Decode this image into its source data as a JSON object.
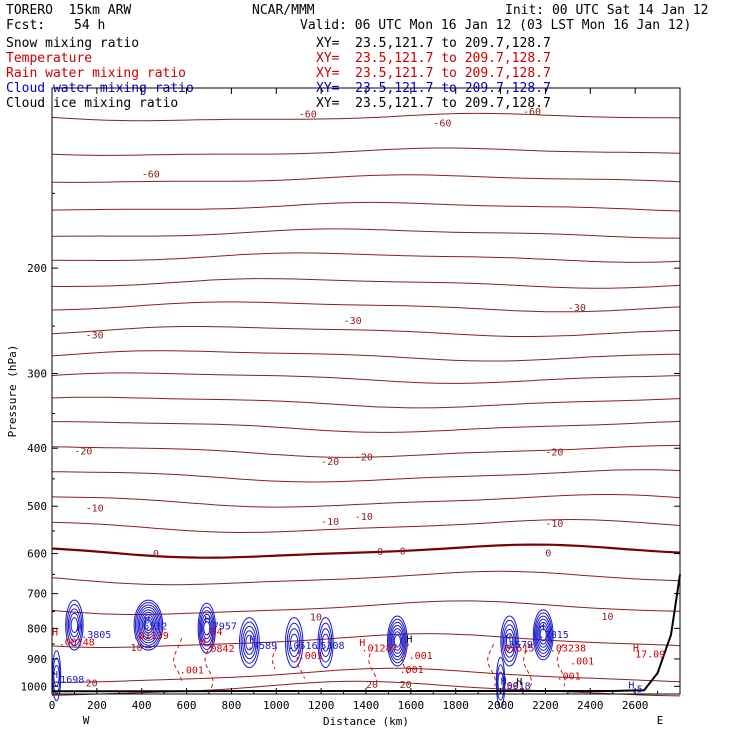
{
  "header": {
    "model": "TORERO  15km ARW",
    "org": "NCAR/MMM",
    "init": "Init: 00 UTC Sat 14 Jan 12",
    "fcst_label": "Fcst:",
    "fcst_value": "54 h",
    "valid": "Valid: 06 UTC Mon 16 Jan 12 (03 LST Mon 16 Jan 12)"
  },
  "fields": [
    {
      "name": "Snow mixing ratio",
      "xy": "XY=  23.5,121.7 to 209.7,128.7",
      "color": "#000000",
      "xy_color": "#000000"
    },
    {
      "name": "Temperature",
      "xy": "XY=  23.5,121.7 to 209.7,128.7",
      "color": "#cc0000",
      "xy_color": "#cc0000"
    },
    {
      "name": "Rain water mixing ratio",
      "xy": "XY=  23.5,121.7 to 209.7,128.7",
      "color": "#cc0000",
      "xy_color": "#cc0000"
    },
    {
      "name": "Cloud water mixing ratio",
      "xy": "XY=  23.5,121.7 to 209.7,128.7",
      "color": "#0000cc",
      "xy_color": "#0000cc"
    },
    {
      "name": "Cloud ice mixing ratio",
      "xy": "XY=  23.5,121.7 to 209.7,128.7",
      "color": "#000000",
      "xy_color": "#000000"
    }
  ],
  "chart_data": {
    "type": "cross-section contour",
    "xlabel": "Distance (km)",
    "ylabel": "Pressure (hPa)",
    "x_ticks": [
      0,
      200,
      400,
      600,
      800,
      1000,
      1200,
      1400,
      1600,
      1800,
      2000,
      2200,
      2400,
      2600
    ],
    "y_ticks": [
      200,
      300,
      400,
      500,
      600,
      700,
      800,
      900,
      1000
    ],
    "xlim": [
      0,
      2800
    ],
    "ylim": [
      1030,
      100
    ],
    "y_scale": "log",
    "west_label": "W",
    "east_label": "E",
    "temperature_labels": [
      {
        "x": 1100,
        "p": 112,
        "text": "-60"
      },
      {
        "x": 1700,
        "p": 116,
        "text": "-60"
      },
      {
        "x": 2100,
        "p": 111,
        "text": "-60"
      },
      {
        "x": 400,
        "p": 141,
        "text": "-60"
      },
      {
        "x": 1300,
        "p": 248,
        "text": "-30"
      },
      {
        "x": 2300,
        "p": 236,
        "text": "-30"
      },
      {
        "x": 150,
        "p": 262,
        "text": "-30"
      },
      {
        "x": 1200,
        "p": 427,
        "text": "-20"
      },
      {
        "x": 1350,
        "p": 419,
        "text": "-20"
      },
      {
        "x": 2200,
        "p": 411,
        "text": "-20"
      },
      {
        "x": 100,
        "p": 410,
        "text": "-20"
      },
      {
        "x": 1200,
        "p": 537,
        "text": "-10"
      },
      {
        "x": 1350,
        "p": 527,
        "text": "-10"
      },
      {
        "x": 2200,
        "p": 542,
        "text": "-10"
      },
      {
        "x": 150,
        "p": 510,
        "text": "-10"
      },
      {
        "x": 450,
        "p": 608,
        "text": "0"
      },
      {
        "x": 1450,
        "p": 603,
        "text": "0"
      },
      {
        "x": 1550,
        "p": 602,
        "text": "0"
      },
      {
        "x": 2200,
        "p": 607,
        "text": "0"
      },
      {
        "x": 1150,
        "p": 776,
        "text": "10"
      },
      {
        "x": 2450,
        "p": 775,
        "text": "10"
      },
      {
        "x": 350,
        "p": 873,
        "text": "10"
      },
      {
        "x": 150,
        "p": 1000,
        "text": "20"
      },
      {
        "x": 1400,
        "p": 1007,
        "text": "20"
      },
      {
        "x": 1550,
        "p": 1007,
        "text": "20"
      }
    ],
    "rain_labels": [
      {
        "x": 570,
        "p": 952,
        "text": ".001"
      },
      {
        "x": 1100,
        "p": 900,
        "text": ".001"
      },
      {
        "x": 1590,
        "p": 900,
        "text": ".001"
      },
      {
        "x": 1550,
        "p": 950,
        "text": ".001"
      },
      {
        "x": 2250,
        "p": 975,
        "text": ".001"
      },
      {
        "x": 2310,
        "p": 920,
        "text": ".001"
      },
      {
        "x": 2000,
        "p": 1010,
        "text": ".001"
      },
      {
        "x": 0,
        "p": 822,
        "text": "H"
      },
      {
        "x": 30,
        "p": 855,
        "text": ".00148"
      },
      {
        "x": 360,
        "p": 833,
        "text": ".01139"
      },
      {
        "x": 680,
        "p": 820,
        "text": ".04"
      },
      {
        "x": 660,
        "p": 853,
        "text": "H"
      },
      {
        "x": 680,
        "p": 876,
        "text": ".0842"
      },
      {
        "x": 1370,
        "p": 857,
        "text": "H"
      },
      {
        "x": 1380,
        "p": 874,
        "text": ".01287"
      },
      {
        "x": 1990,
        "p": 874,
        "text": ".01515"
      },
      {
        "x": 2220,
        "p": 874,
        "text": ".03238"
      },
      {
        "x": 2590,
        "p": 875,
        "text": "H"
      },
      {
        "x": 2600,
        "p": 895,
        "text": "17.09"
      }
    ],
    "cloud_water_labels": [
      {
        "x": 110,
        "p": 808,
        "text": "H"
      },
      {
        "x": 130,
        "p": 830,
        "text": ".3805"
      },
      {
        "x": 410,
        "p": 783,
        "text": "H"
      },
      {
        "x": 380,
        "p": 803,
        "text": ".6532"
      },
      {
        "x": 680,
        "p": 784,
        "text": "H"
      },
      {
        "x": 690,
        "p": 803,
        "text": ".7957"
      },
      {
        "x": 880,
        "p": 846,
        "text": "H"
      },
      {
        "x": 870,
        "p": 866,
        "text": ".4589"
      },
      {
        "x": 1050,
        "p": 866,
        "text": ".0516"
      },
      {
        "x": 1170,
        "p": 866,
        "text": ".5308"
      },
      {
        "x": 2020,
        "p": 844,
        "text": "H"
      },
      {
        "x": 2010,
        "p": 863,
        "text": ".6579"
      },
      {
        "x": 2170,
        "p": 806,
        "text": "H"
      },
      {
        "x": 2170,
        "p": 830,
        "text": ".7815"
      },
      {
        "x": 0,
        "p": 968,
        "text": "H"
      },
      {
        "x": 10,
        "p": 988,
        "text": ".1698"
      },
      {
        "x": 2000,
        "p": 993,
        "text": "H"
      },
      {
        "x": 2000,
        "p": 1012,
        "text": ".5918"
      },
      {
        "x": 2570,
        "p": 1008,
        "text": "H"
      },
      {
        "x": 2580,
        "p": 1025,
        "text": ".5"
      }
    ],
    "ice_labels": [
      {
        "x": 1580,
        "p": 845,
        "text": "H"
      },
      {
        "x": 2070,
        "p": 995,
        "text": "H"
      }
    ]
  }
}
